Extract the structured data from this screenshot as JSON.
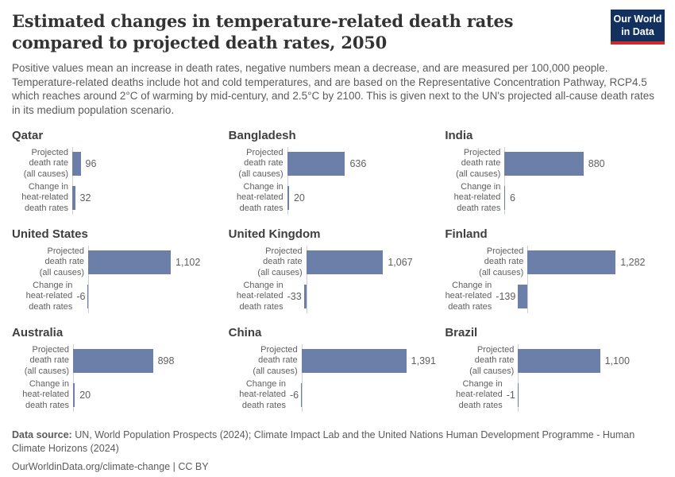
{
  "header": {
    "title": "Estimated changes in temperature-related death rates compared to projected death rates, 2050",
    "subtitle": "Positive values mean an increase in death rates, negative numbers mean a decrease, and are measured per 100,000 people. Temperature-related deaths include hot and cold temperatures, and are based on the Representative Concentration Pathway, RCP4.5 which reaches around 2°C of warming by mid-century, and 2.5°C by 2100. This is given next to the UN's projected all-cause death rates in its medium population scenario.",
    "logo": {
      "line1": "Our World",
      "line2": "in Data"
    }
  },
  "chart_data": {
    "type": "bar",
    "orientation": "horizontal",
    "unit": "per 100,000 people",
    "bar_color": "#6c7fa9",
    "categories": [
      "Projected\ndeath rate\n(all causes)",
      "Change in\nheat-related\ndeath rates"
    ],
    "panels": [
      {
        "country": "Qatar",
        "values": [
          96,
          32
        ],
        "labels": [
          "96",
          "32"
        ]
      },
      {
        "country": "Bangladesh",
        "values": [
          636,
          20
        ],
        "labels": [
          "636",
          "20"
        ]
      },
      {
        "country": "India",
        "values": [
          880,
          6
        ],
        "labels": [
          "880",
          "6"
        ]
      },
      {
        "country": "United States",
        "values": [
          1102,
          -6
        ],
        "labels": [
          "1,102",
          "-6"
        ]
      },
      {
        "country": "United Kingdom",
        "values": [
          1067,
          -33
        ],
        "labels": [
          "1,067",
          "-33"
        ]
      },
      {
        "country": "Finland",
        "values": [
          1282,
          -139
        ],
        "labels": [
          "1,282",
          "-139"
        ]
      },
      {
        "country": "Australia",
        "values": [
          898,
          20
        ],
        "labels": [
          "898",
          "20"
        ]
      },
      {
        "country": "China",
        "values": [
          1391,
          -6
        ],
        "labels": [
          "1,391",
          "-6"
        ]
      },
      {
        "country": "Brazil",
        "values": [
          1100,
          -1
        ],
        "labels": [
          "1,100",
          "-1"
        ]
      }
    ]
  },
  "footer": {
    "source_label": "Data source:",
    "source_text": " UN, World Population Prospects (2024); Climate Impact Lab and the United Nations Human Development Programme - Human Climate Horizons (2024)",
    "url_line": "OurWorldinData.org/climate-change | CC BY"
  }
}
